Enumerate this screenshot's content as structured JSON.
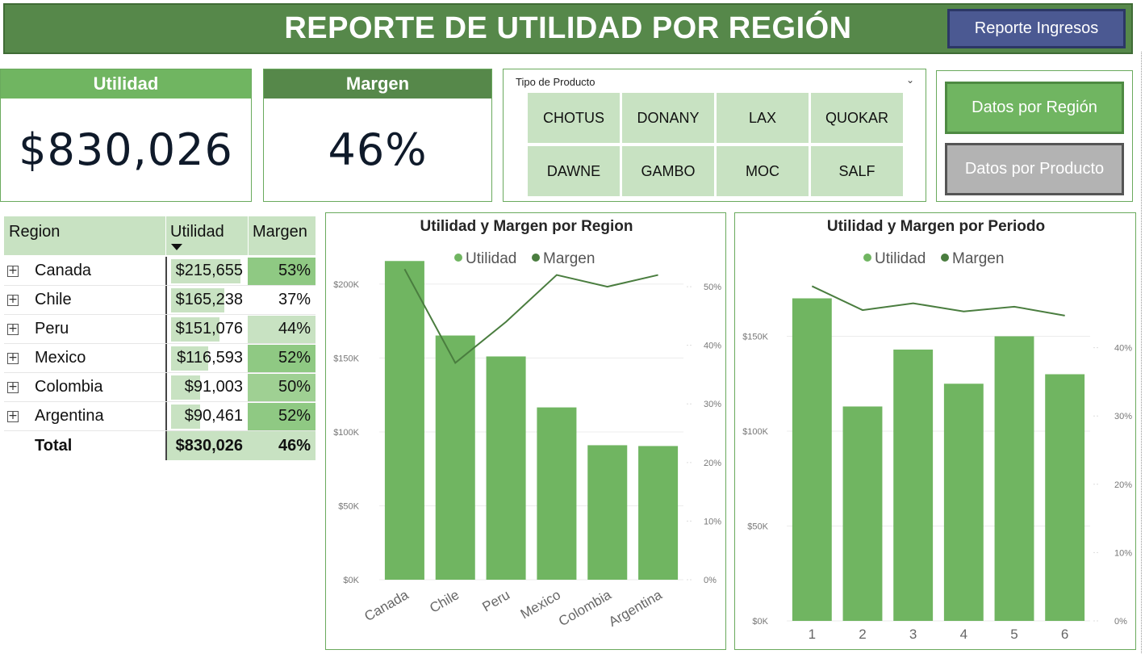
{
  "header": {
    "title": "REPORTE DE UTILIDAD POR REGIÓN",
    "nav_button": "Reporte Ingresos"
  },
  "kpis": {
    "utilidad": {
      "label": "Utilidad",
      "value": "$830,026"
    },
    "margen": {
      "label": "Margen",
      "value": "46%"
    }
  },
  "slicer": {
    "title": "Tipo de Producto",
    "options": [
      "CHOTUS",
      "DONANY",
      "LAX",
      "QUOKAR",
      "DAWNE",
      "GAMBO",
      "MOC",
      "SALF"
    ]
  },
  "buttons": {
    "region": "Datos por Región",
    "producto": "Datos por Producto"
  },
  "table": {
    "headers": {
      "region": "Region",
      "utilidad": "Utilidad",
      "margen": "Margen"
    },
    "rows": [
      {
        "region": "Canada",
        "utilidad": "$215,655",
        "margen": "53%",
        "utilidad_value": 215655,
        "margen_value": 53
      },
      {
        "region": "Chile",
        "utilidad": "$165,238",
        "margen": "37%",
        "utilidad_value": 165238,
        "margen_value": 37
      },
      {
        "region": "Peru",
        "utilidad": "$151,076",
        "margen": "44%",
        "utilidad_value": 151076,
        "margen_value": 44
      },
      {
        "region": "Mexico",
        "utilidad": "$116,593",
        "margen": "52%",
        "utilidad_value": 116593,
        "margen_value": 52
      },
      {
        "region": "Colombia",
        "utilidad": "$91,003",
        "margen": "50%",
        "utilidad_value": 91003,
        "margen_value": 50
      },
      {
        "region": "Argentina",
        "utilidad": "$90,461",
        "margen": "52%",
        "utilidad_value": 90461,
        "margen_value": 52
      }
    ],
    "total": {
      "label": "Total",
      "utilidad": "$830,026",
      "margen": "46%"
    }
  },
  "colors": {
    "bar": "#70b561",
    "line": "#4a7d3f",
    "header": "#56884a",
    "kpi_utilidad_head": "#70b561",
    "kpi_margen_head": "#56884a",
    "tile": "#c8e2c2",
    "nav_button": "#4b5992",
    "region_button": "#70b561",
    "producto_button": "#b3b3b3"
  },
  "chart_data": [
    {
      "type": "bar+line",
      "title": "Utilidad y Margen por Region",
      "legend": [
        "Utilidad",
        "Margen"
      ],
      "legend_position": "top-center",
      "categories": [
        "Canada",
        "Chile",
        "Peru",
        "Mexico",
        "Colombia",
        "Argentina"
      ],
      "series": [
        {
          "name": "Utilidad",
          "type": "bar",
          "axis": "left",
          "values": [
            215655,
            165238,
            151076,
            116593,
            91003,
            90461
          ]
        },
        {
          "name": "Margen",
          "type": "line",
          "axis": "right",
          "values": [
            53,
            37,
            44,
            52,
            50,
            52
          ]
        }
      ],
      "y_left": {
        "ticks": [
          "$0K",
          "$50K",
          "$100K",
          "$150K",
          "$200K"
        ],
        "ylim": [
          0,
          230000
        ]
      },
      "y_right": {
        "ticks": [
          "0%",
          "10%",
          "20%",
          "30%",
          "40%",
          "50%"
        ],
        "ylim": [
          0,
          58
        ]
      },
      "grid": true
    },
    {
      "type": "bar+line",
      "title": "Utilidad y Margen por Periodo",
      "legend": [
        "Utilidad",
        "Margen"
      ],
      "legend_position": "top-center",
      "categories": [
        "1",
        "2",
        "3",
        "4",
        "5",
        "6"
      ],
      "series": [
        {
          "name": "Utilidad",
          "type": "bar",
          "axis": "left",
          "values": [
            170000,
            113000,
            143000,
            125000,
            150000,
            130000
          ]
        },
        {
          "name": "Margen",
          "type": "line",
          "axis": "right",
          "values": [
            49,
            45.5,
            46.5,
            45.3,
            46,
            44.7
          ]
        }
      ],
      "y_left": {
        "ticks": [
          "$0K",
          "$50K",
          "$100K",
          "$150K"
        ],
        "ylim": [
          0,
          180000
        ]
      },
      "y_right": {
        "ticks": [
          "0%",
          "10%",
          "20%",
          "30%",
          "40%"
        ],
        "ylim": [
          0,
          50
        ]
      },
      "grid": true
    }
  ]
}
